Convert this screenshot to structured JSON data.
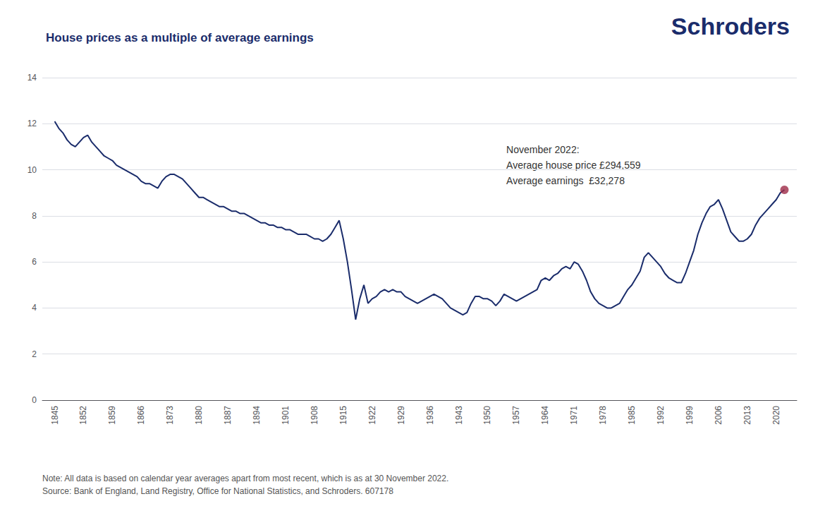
{
  "chart_data": {
    "type": "line",
    "title": "House prices as a multiple of average earnings",
    "annotations": [
      "Schroders",
      "November 2022:\nAverage house price £294,559\nAverage earnings  £32,278",
      "Note: All data is based on calendar year averages apart from most recent, which is as at 30 November 2022.\nSource: Bank of England, Land Registry, Office for National Statistics, and Schroders. 607178"
    ],
    "x": [
      1845,
      1846,
      1847,
      1848,
      1849,
      1850,
      1851,
      1852,
      1853,
      1854,
      1855,
      1856,
      1857,
      1858,
      1859,
      1860,
      1861,
      1862,
      1863,
      1864,
      1865,
      1866,
      1867,
      1868,
      1869,
      1870,
      1871,
      1872,
      1873,
      1874,
      1875,
      1876,
      1877,
      1878,
      1879,
      1880,
      1881,
      1882,
      1883,
      1884,
      1885,
      1886,
      1887,
      1888,
      1889,
      1890,
      1891,
      1892,
      1893,
      1894,
      1895,
      1896,
      1897,
      1898,
      1899,
      1900,
      1901,
      1902,
      1903,
      1904,
      1905,
      1906,
      1907,
      1908,
      1909,
      1910,
      1911,
      1912,
      1913,
      1914,
      1915,
      1916,
      1917,
      1918,
      1919,
      1920,
      1921,
      1922,
      1923,
      1924,
      1925,
      1926,
      1927,
      1928,
      1929,
      1930,
      1931,
      1932,
      1933,
      1934,
      1935,
      1936,
      1937,
      1938,
      1939,
      1940,
      1941,
      1942,
      1943,
      1944,
      1945,
      1946,
      1947,
      1948,
      1949,
      1950,
      1951,
      1952,
      1953,
      1954,
      1955,
      1956,
      1957,
      1958,
      1959,
      1960,
      1961,
      1962,
      1963,
      1964,
      1965,
      1966,
      1967,
      1968,
      1969,
      1970,
      1971,
      1972,
      1973,
      1974,
      1975,
      1976,
      1977,
      1978,
      1979,
      1980,
      1981,
      1982,
      1983,
      1984,
      1985,
      1986,
      1987,
      1988,
      1989,
      1990,
      1991,
      1992,
      1993,
      1994,
      1995,
      1996,
      1997,
      1998,
      1999,
      2000,
      2001,
      2002,
      2003,
      2004,
      2005,
      2006,
      2007,
      2008,
      2009,
      2010,
      2011,
      2012,
      2013,
      2014,
      2015,
      2016,
      2017,
      2018,
      2019,
      2020,
      2021,
      2022
    ],
    "series": [
      {
        "type": "line",
        "color": "#1a2c6b",
        "values": [
          12.1,
          11.8,
          11.6,
          11.3,
          11.1,
          11.0,
          11.2,
          11.4,
          11.5,
          11.2,
          11.0,
          10.8,
          10.6,
          10.5,
          10.4,
          10.2,
          10.1,
          10.0,
          9.9,
          9.8,
          9.7,
          9.5,
          9.4,
          9.4,
          9.3,
          9.2,
          9.5,
          9.7,
          9.8,
          9.8,
          9.7,
          9.6,
          9.4,
          9.2,
          9.0,
          8.8,
          8.8,
          8.7,
          8.6,
          8.5,
          8.4,
          8.4,
          8.3,
          8.2,
          8.2,
          8.1,
          8.1,
          8.0,
          7.9,
          7.8,
          7.7,
          7.7,
          7.6,
          7.6,
          7.5,
          7.5,
          7.4,
          7.4,
          7.3,
          7.2,
          7.2,
          7.2,
          7.1,
          7.0,
          7.0,
          6.9,
          7.0,
          7.2,
          7.5,
          7.8,
          7.0,
          6.0,
          4.8,
          3.5,
          4.4,
          5.0,
          4.2,
          4.4,
          4.5,
          4.7,
          4.8,
          4.7,
          4.8,
          4.7,
          4.7,
          4.5,
          4.4,
          4.3,
          4.2,
          4.3,
          4.4,
          4.5,
          4.6,
          4.5,
          4.4,
          4.2,
          4.0,
          3.9,
          3.8,
          3.7,
          3.8,
          4.2,
          4.5,
          4.5,
          4.4,
          4.4,
          4.3,
          4.1,
          4.3,
          4.6,
          4.5,
          4.4,
          4.3,
          4.4,
          4.5,
          4.6,
          4.7,
          4.8,
          5.2,
          5.3,
          5.2,
          5.4,
          5.5,
          5.7,
          5.8,
          5.7,
          6.0,
          5.9,
          5.6,
          5.2,
          4.7,
          4.4,
          4.2,
          4.1,
          4.0,
          4.0,
          4.1,
          4.2,
          4.5,
          4.8,
          5.0,
          5.3,
          5.6,
          6.2,
          6.4,
          6.2,
          6.0,
          5.8,
          5.5,
          5.3,
          5.2,
          5.1,
          5.1,
          5.5,
          6.0,
          6.5,
          7.2,
          7.7,
          8.1,
          8.4,
          8.5,
          8.7,
          8.3,
          7.8,
          7.3,
          7.1,
          6.9,
          6.9,
          7.0,
          7.2,
          7.6,
          7.9,
          8.1,
          8.3,
          8.5,
          8.7,
          9.0,
          9.13
        ]
      },
      {
        "type": "scatter",
        "color": "#9e2a47",
        "marker": "circle",
        "x": [
          2022
        ],
        "values": [
          9.13
        ]
      }
    ],
    "xlim": [
      1842,
      2025
    ],
    "xticks": [
      1845,
      1852,
      1859,
      1866,
      1873,
      1880,
      1887,
      1894,
      1901,
      1908,
      1915,
      1922,
      1929,
      1936,
      1943,
      1950,
      1957,
      1964,
      1971,
      1978,
      1985,
      1992,
      1999,
      2006,
      2013,
      2020
    ],
    "ylim": [
      0,
      14
    ],
    "yticks": [
      0,
      2,
      4,
      6,
      8,
      10,
      12,
      14
    ],
    "grid": true
  }
}
